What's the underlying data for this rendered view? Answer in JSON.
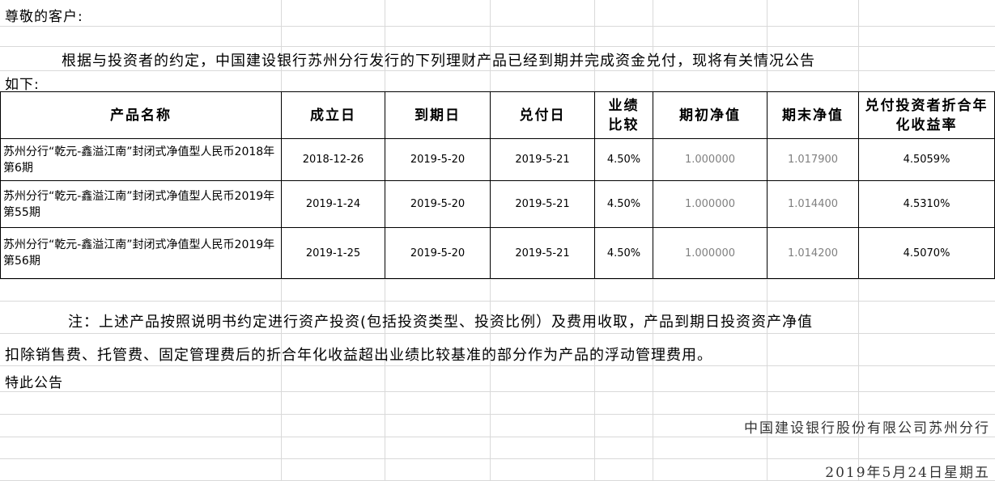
{
  "greeting": "尊敬的客户:",
  "intro_line1": "根据与投资者的约定，中国建设银行苏州分行发行的下列理财产品已经到期并完成资金兑付，现将有关情况公告",
  "intro_line2": "如下:",
  "table": {
    "headers": [
      "产品名称",
      "成立日",
      "到期日",
      "兑付日",
      "业绩比较",
      "期初净值",
      "期末净值",
      "兑付投资者折合年化收益率"
    ],
    "rows": [
      [
        "苏州分行“乾元-鑫溢江南”封闭式净值型人民币2018年第6期",
        "2018-12-26",
        "2019-5-20",
        "2019-5-21",
        "4.50%",
        "1.000000",
        "1.017900",
        "4.5059%"
      ],
      [
        "苏州分行“乾元-鑫溢江南”封闭式净值型人民币2019年第55期",
        "2019-1-24",
        "2019-5-20",
        "2019-5-21",
        "4.50%",
        "1.000000",
        "1.014400",
        "4.5310%"
      ],
      [
        "苏州分行“乾元-鑫溢江南”封闭式净值型人民币2019年第56期",
        "2019-1-25",
        "2019-5-20",
        "2019-5-21",
        "4.50%",
        "1.000000",
        "1.014200",
        "4.5070%"
      ]
    ]
  },
  "note_line1": "注：上述产品按照说明书约定进行资产投资(包括投资类型、投资比例）及费用收取，产品到期日投资资产净值",
  "note_line2": "扣除销售费、托管费、固定管理费后的折合年化收益超出业绩比较基准的部分作为产品的浮动管理费用。",
  "closing": "特此公告",
  "signature": "中国建设银行股份有限公司苏州分行",
  "date": "2019年5月24日星期五"
}
